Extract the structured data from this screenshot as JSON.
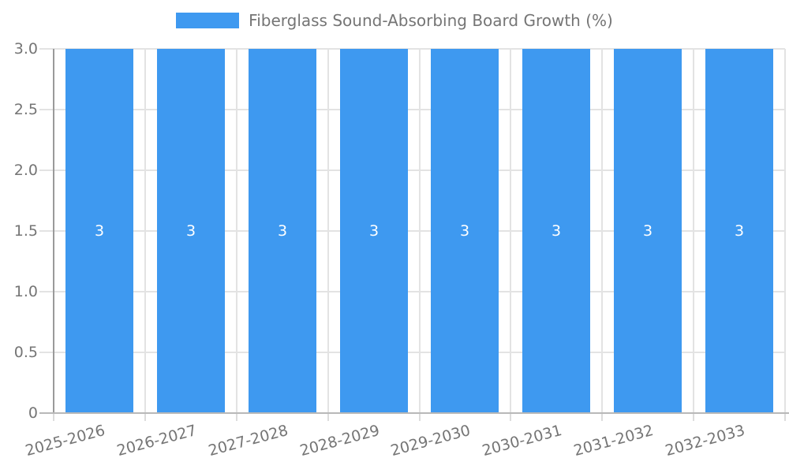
{
  "chart_data": {
    "type": "bar",
    "series_name": "Fiberglass Sound-Absorbing Board Growth (%)",
    "categories": [
      "2025-2026",
      "2026-2027",
      "2027-2028",
      "2028-2029",
      "2029-2030",
      "2030-2031",
      "2031-2032",
      "2032-2033"
    ],
    "values": [
      3,
      3,
      3,
      3,
      3,
      3,
      3,
      3
    ],
    "data_labels": [
      "3",
      "3",
      "3",
      "3",
      "3",
      "3",
      "3",
      "3"
    ],
    "ylim": [
      0,
      3
    ],
    "yticks": [
      {
        "value": 0,
        "label": "0"
      },
      {
        "value": 0.5,
        "label": "0.5"
      },
      {
        "value": 1,
        "label": "1.0"
      },
      {
        "value": 1.5,
        "label": "1.5"
      },
      {
        "value": 2,
        "label": "2.0"
      },
      {
        "value": 2.5,
        "label": "2.5"
      },
      {
        "value": 3,
        "label": "3.0"
      }
    ],
    "grid": true,
    "legend_position": "top-center",
    "xlabel": "",
    "ylabel": "",
    "colors": {
      "bar": "#3E99F0",
      "bar_label": "#ffffff",
      "axis_text": "#757575",
      "grid_line": "#e3e3e3",
      "y_axis_line": "#9a9a9a",
      "x_axis_line": "#b8b8b8",
      "background": "#ffffff"
    }
  }
}
